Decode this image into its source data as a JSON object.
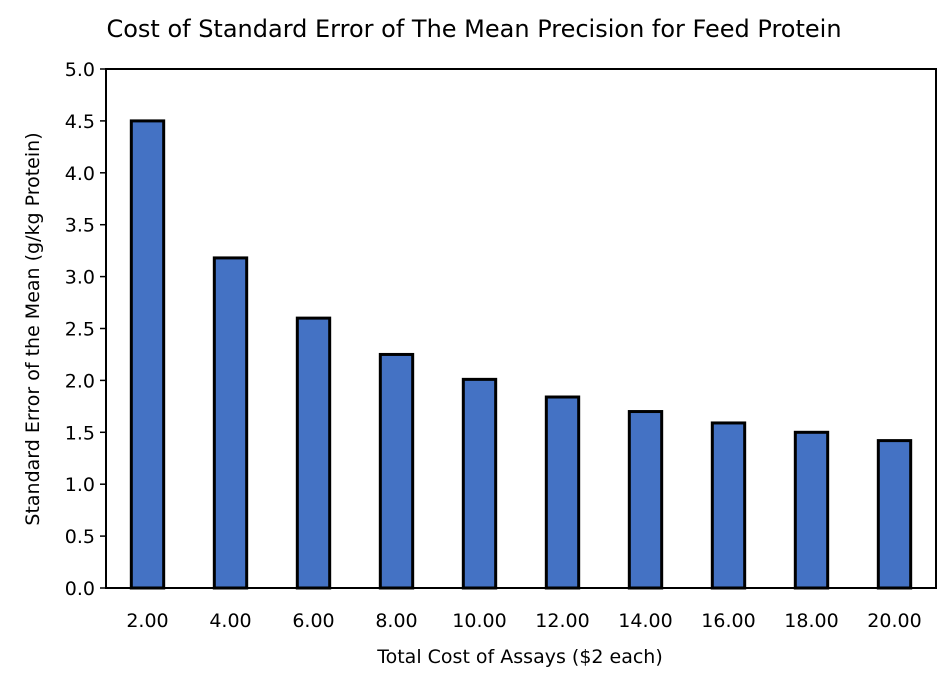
{
  "chart_data": {
    "type": "bar",
    "title": "Cost of Standard Error of The Mean Precision for Feed Protein",
    "xlabel": "Total Cost of Assays ($2 each)",
    "ylabel": "Standard Error of the Mean (g/kg Protein)",
    "categories": [
      "2.00",
      "4.00",
      "6.00",
      "8.00",
      "10.00",
      "12.00",
      "14.00",
      "16.00",
      "18.00",
      "20.00"
    ],
    "values": [
      4.5,
      3.18,
      2.6,
      2.25,
      2.01,
      1.84,
      1.7,
      1.59,
      1.5,
      1.42
    ],
    "ylim": [
      0,
      5
    ],
    "yticks": [
      "0.0",
      "0.5",
      "1.0",
      "1.5",
      "2.0",
      "2.5",
      "3.0",
      "3.5",
      "4.0",
      "4.5",
      "5.0"
    ],
    "grid": false,
    "legend": "none",
    "bar_color": "#4472C4",
    "bar_outline_color": "#000000"
  }
}
